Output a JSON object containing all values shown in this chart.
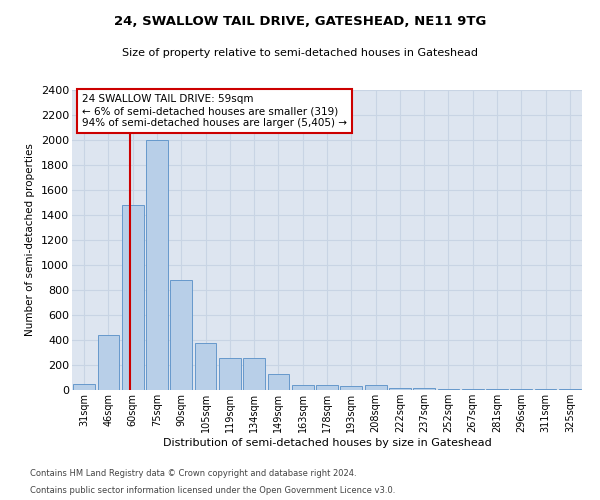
{
  "title1": "24, SWALLOW TAIL DRIVE, GATESHEAD, NE11 9TG",
  "title2": "Size of property relative to semi-detached houses in Gateshead",
  "xlabel": "Distribution of semi-detached houses by size in Gateshead",
  "ylabel": "Number of semi-detached properties",
  "footer1": "Contains HM Land Registry data © Crown copyright and database right 2024.",
  "footer2": "Contains public sector information licensed under the Open Government Licence v3.0.",
  "bar_labels": [
    "31sqm",
    "46sqm",
    "60sqm",
    "75sqm",
    "90sqm",
    "105sqm",
    "119sqm",
    "134sqm",
    "149sqm",
    "163sqm",
    "178sqm",
    "193sqm",
    "208sqm",
    "222sqm",
    "237sqm",
    "252sqm",
    "267sqm",
    "281sqm",
    "296sqm",
    "311sqm",
    "325sqm"
  ],
  "bar_values": [
    45,
    440,
    1480,
    2000,
    880,
    375,
    260,
    260,
    130,
    40,
    40,
    30,
    40,
    20,
    20,
    10,
    5,
    5,
    5,
    5,
    5
  ],
  "bar_color": "#b8cfe8",
  "bar_edge_color": "#6699cc",
  "grid_color": "#c8d4e4",
  "property_label": "24 SWALLOW TAIL DRIVE: 59sqm",
  "annotation_smaller": "← 6% of semi-detached houses are smaller (319)",
  "annotation_larger": "94% of semi-detached houses are larger (5,405) →",
  "annotation_box_color": "#ffffff",
  "annotation_border_color": "#cc0000",
  "red_line_color": "#cc0000",
  "ylim": [
    0,
    2400
  ],
  "yticks": [
    0,
    200,
    400,
    600,
    800,
    1000,
    1200,
    1400,
    1600,
    1800,
    2000,
    2200,
    2400
  ],
  "plot_bg_color": "#dde5f0",
  "fig_bg_color": "#ffffff"
}
